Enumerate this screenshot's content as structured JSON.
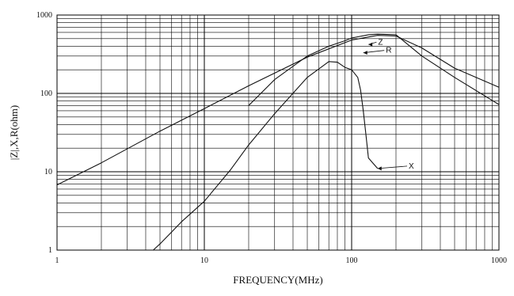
{
  "chart_data": {
    "type": "line",
    "xscale": "log",
    "yscale": "log",
    "xlim": [
      1,
      1000
    ],
    "ylim": [
      1,
      1000
    ],
    "grid": true,
    "xlabel": "FREQUENCY(MHz)",
    "ylabel": "|Z|,X,R(ohm)",
    "xticks": [
      1,
      10,
      100,
      1000
    ],
    "xtick_labels": [
      "1",
      "10",
      "100",
      "1000"
    ],
    "yticks": [
      1,
      10,
      100,
      1000
    ],
    "ytick_labels": [
      "1",
      "10",
      "100",
      "1000"
    ],
    "series": [
      {
        "name": "Z",
        "x": [
          1,
          2,
          5,
          10,
          20,
          50,
          100,
          150,
          200,
          300,
          500,
          1000
        ],
        "y": [
          6.8,
          13,
          33,
          64,
          125,
          290,
          480,
          550,
          540,
          380,
          210,
          120
        ]
      },
      {
        "name": "R",
        "x": [
          1,
          20,
          30,
          50,
          70,
          90,
          100,
          130,
          150,
          200,
          300,
          500,
          1000
        ],
        "y": [
          null,
          70,
          150,
          300,
          400,
          470,
          510,
          560,
          570,
          560,
          300,
          160,
          72
        ]
      },
      {
        "name": "X",
        "x": [
          4.5,
          5,
          7,
          10,
          15,
          20,
          30,
          50,
          70,
          80,
          90,
          100,
          110,
          115,
          120,
          125,
          130,
          150
        ],
        "y": [
          1,
          1.2,
          2.3,
          4.2,
          10.5,
          22,
          55,
          160,
          255,
          250,
          215,
          200,
          160,
          110,
          60,
          30,
          15,
          11
        ]
      }
    ],
    "annotations": [
      {
        "text": "Z",
        "x": 155,
        "y": 420
      },
      {
        "text": "R",
        "x": 175,
        "y": 330
      },
      {
        "text": "X",
        "x": 250,
        "y": 11
      }
    ]
  }
}
